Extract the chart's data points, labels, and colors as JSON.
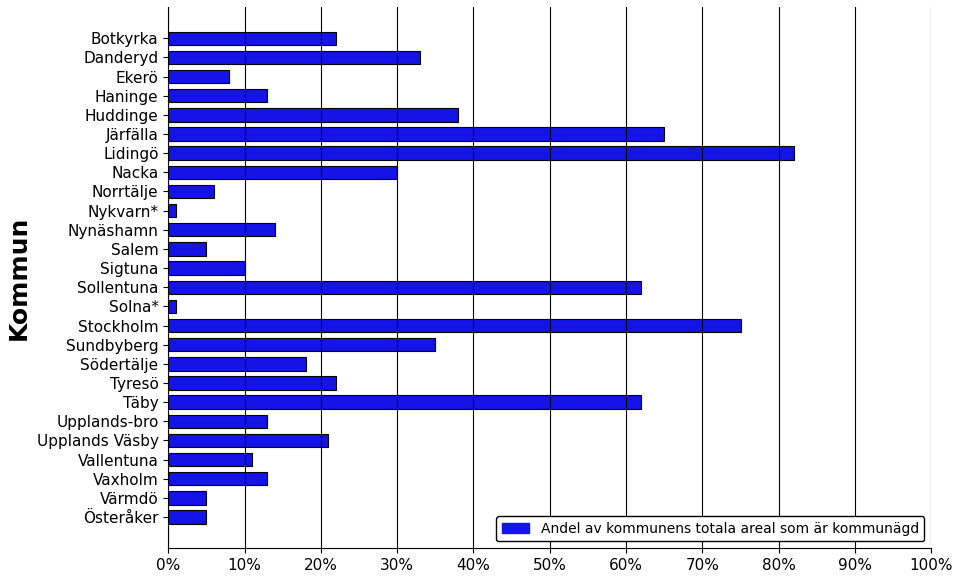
{
  "categories": [
    "Botkyrka",
    "Danderyd",
    "Ekerö",
    "Haninge",
    "Huddinge",
    "Järfälla",
    "Lidingö",
    "Nacka",
    "Norrtälje",
    "Nykvarn*",
    "Nynäshamn",
    "Salem",
    "Sigtuna",
    "Sollentuna",
    "Solna*",
    "Stockholm",
    "Sundbyberg",
    "Södertälje",
    "Tyresö",
    "Täby",
    "Upplands-bro",
    "Upplands Väsby",
    "Vallentuna",
    "Vaxholm",
    "Värmdö",
    "Österåker"
  ],
  "values": [
    22,
    33,
    8,
    13,
    38,
    65,
    82,
    30,
    6,
    1,
    14,
    5,
    10,
    62,
    1,
    75,
    35,
    18,
    22,
    62,
    13,
    21,
    11,
    13,
    5,
    5
  ],
  "bar_color": "#1414e6",
  "bar_edgecolor": "#000000",
  "xlabel": "",
  "ylabel": "Kommun",
  "ylabel_fontsize": 18,
  "ylabel_fontweight": "bold",
  "xtick_labels": [
    "0%",
    "10%",
    "20%",
    "30%",
    "40%",
    "50%",
    "60%",
    "70%",
    "80%",
    "90%",
    "100%"
  ],
  "xtick_values": [
    0,
    10,
    20,
    30,
    40,
    50,
    60,
    70,
    80,
    90,
    100
  ],
  "xlim": [
    0,
    100
  ],
  "legend_label": "Andel av kommunens totala areal som är kommunägd",
  "legend_fontsize": 10,
  "tick_fontsize": 11,
  "category_fontsize": 11,
  "background_color": "#ffffff",
  "grid_color": "#000000",
  "bar_linewidth": 0.8
}
